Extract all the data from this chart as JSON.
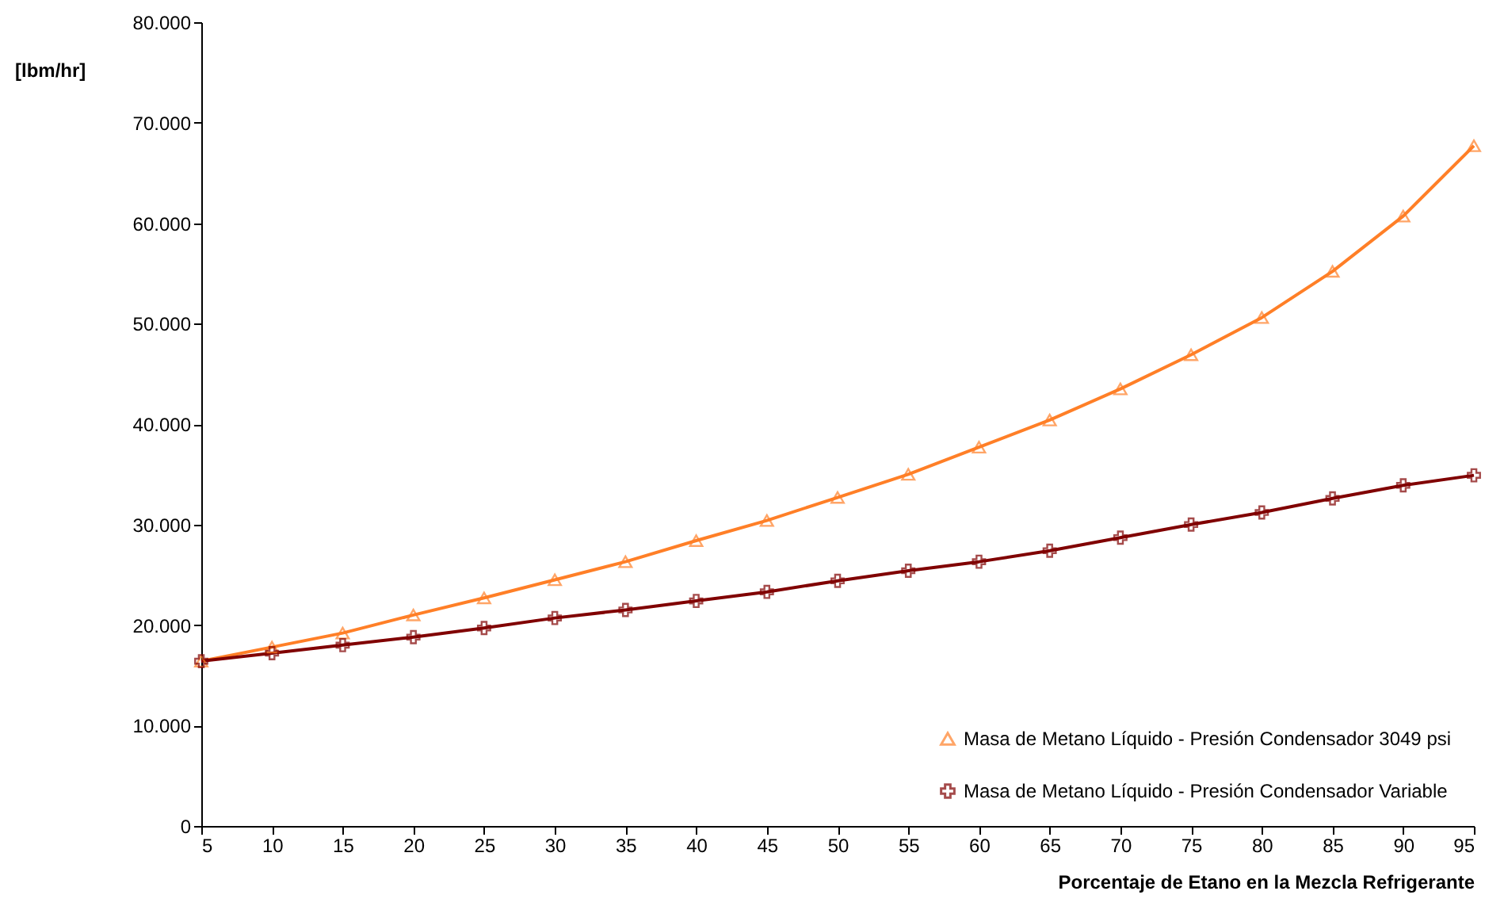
{
  "chart_data": {
    "type": "line",
    "xlabel": "Porcentaje de Etano en la Mezcla Refrigerante",
    "ylabel": "[lbm/hr]",
    "x": [
      5,
      10,
      15,
      20,
      25,
      30,
      35,
      40,
      45,
      50,
      55,
      60,
      65,
      70,
      75,
      80,
      85,
      90,
      95
    ],
    "series": [
      {
        "name": "Masa de Metano Líquido - Presión Condensador 3049 psi",
        "color": "#ff7f27",
        "marker": "triangle",
        "values": [
          16400,
          17800,
          19200,
          21000,
          22700,
          24500,
          26300,
          28400,
          30400,
          32700,
          35000,
          37700,
          40400,
          43500,
          46900,
          50600,
          55200,
          60700,
          67700
        ]
      },
      {
        "name": "Masa de Metano Líquido - Presión Condensador Variable",
        "color": "#800000",
        "marker": "cross",
        "values": [
          16400,
          17200,
          18000,
          18800,
          19700,
          20700,
          21500,
          22400,
          23300,
          24400,
          25400,
          26300,
          27400,
          28700,
          30000,
          31200,
          32600,
          33900,
          34900
        ]
      }
    ],
    "xlim": [
      5,
      95
    ],
    "xticks": [
      5,
      10,
      15,
      20,
      25,
      30,
      35,
      40,
      45,
      50,
      55,
      60,
      65,
      70,
      75,
      80,
      85,
      90,
      95
    ],
    "ylim": [
      0,
      80000
    ],
    "yticks": [
      0,
      {
        "value": 10000,
        "label": "10.000"
      },
      {
        "value": 20000,
        "label": "20.000"
      },
      {
        "value": 30000,
        "label": "30.000"
      },
      {
        "value": 40000,
        "label": "40.000"
      },
      {
        "value": 50000,
        "label": "50.000"
      },
      {
        "value": 60000,
        "label": "60.000"
      },
      {
        "value": 70000,
        "label": "70.000"
      },
      {
        "value": 80000,
        "label": "80.000"
      }
    ],
    "grid": false,
    "legend": "bottom right",
    "line_style": "solid"
  }
}
